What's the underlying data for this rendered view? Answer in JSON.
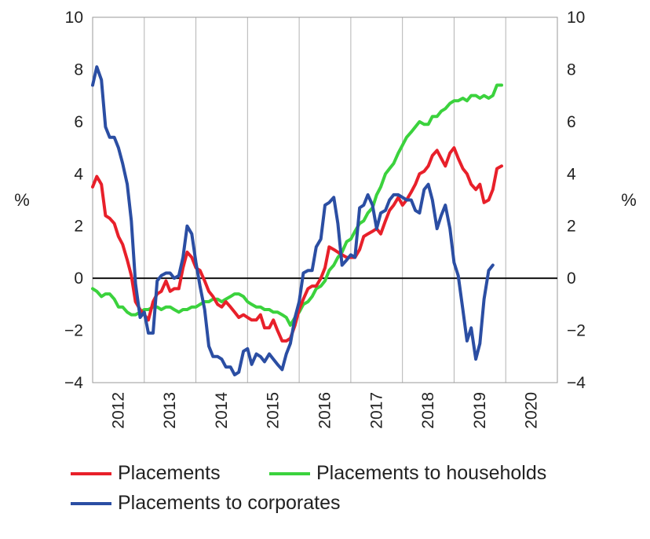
{
  "chart_data": {
    "type": "line",
    "title": "",
    "xlabel": "",
    "ylabel_left": "%",
    "ylabel_right": "%",
    "ylim": [
      -4,
      10
    ],
    "y_ticks": [
      -4,
      -2,
      0,
      2,
      4,
      6,
      8,
      10
    ],
    "x_ticks": [
      "2012",
      "2013",
      "2014",
      "2015",
      "2016",
      "2017",
      "2018",
      "2019",
      "2020"
    ],
    "x_range": [
      2011.0,
      2020.0
    ],
    "grid": "vertical",
    "legend_position": "bottom",
    "series": [
      {
        "name": "Placements",
        "color": "#e8202a",
        "points": [
          [
            2011.0,
            3.5
          ],
          [
            2011.08,
            3.9
          ],
          [
            2011.17,
            3.6
          ],
          [
            2011.25,
            2.4
          ],
          [
            2011.33,
            2.3
          ],
          [
            2011.42,
            2.1
          ],
          [
            2011.5,
            1.6
          ],
          [
            2011.58,
            1.3
          ],
          [
            2011.67,
            0.7
          ],
          [
            2011.75,
            0.1
          ],
          [
            2011.83,
            -0.9
          ],
          [
            2011.92,
            -1.2
          ],
          [
            2012.0,
            -1.4
          ],
          [
            2012.08,
            -1.6
          ],
          [
            2012.17,
            -0.9
          ],
          [
            2012.25,
            -0.6
          ],
          [
            2012.33,
            -0.5
          ],
          [
            2012.42,
            -0.1
          ],
          [
            2012.5,
            -0.5
          ],
          [
            2012.58,
            -0.4
          ],
          [
            2012.67,
            -0.4
          ],
          [
            2012.75,
            0.4
          ],
          [
            2012.83,
            1.0
          ],
          [
            2012.92,
            0.8
          ],
          [
            2013.0,
            0.4
          ],
          [
            2013.08,
            0.3
          ],
          [
            2013.17,
            -0.1
          ],
          [
            2013.25,
            -0.5
          ],
          [
            2013.33,
            -0.7
          ],
          [
            2013.42,
            -1.0
          ],
          [
            2013.5,
            -1.1
          ],
          [
            2013.58,
            -0.9
          ],
          [
            2013.67,
            -1.1
          ],
          [
            2013.75,
            -1.3
          ],
          [
            2013.83,
            -1.5
          ],
          [
            2013.92,
            -1.4
          ],
          [
            2014.0,
            -1.5
          ],
          [
            2014.08,
            -1.6
          ],
          [
            2014.17,
            -1.6
          ],
          [
            2014.25,
            -1.4
          ],
          [
            2014.33,
            -1.9
          ],
          [
            2014.42,
            -1.9
          ],
          [
            2014.5,
            -1.6
          ],
          [
            2014.58,
            -2.0
          ],
          [
            2014.67,
            -2.4
          ],
          [
            2014.75,
            -2.4
          ],
          [
            2014.83,
            -2.3
          ],
          [
            2014.92,
            -1.8
          ],
          [
            2015.0,
            -1.2
          ],
          [
            2015.08,
            -0.8
          ],
          [
            2015.17,
            -0.4
          ],
          [
            2015.25,
            -0.3
          ],
          [
            2015.33,
            -0.3
          ],
          [
            2015.42,
            0.0
          ],
          [
            2015.5,
            0.4
          ],
          [
            2015.58,
            1.2
          ],
          [
            2015.67,
            1.1
          ],
          [
            2015.75,
            1.0
          ],
          [
            2015.83,
            0.9
          ],
          [
            2015.92,
            0.8
          ],
          [
            2016.0,
            0.8
          ],
          [
            2016.08,
            0.8
          ],
          [
            2016.17,
            1.1
          ],
          [
            2016.25,
            1.6
          ],
          [
            2016.33,
            1.7
          ],
          [
            2016.42,
            1.8
          ],
          [
            2016.5,
            1.9
          ],
          [
            2016.58,
            1.7
          ],
          [
            2016.67,
            2.2
          ],
          [
            2016.75,
            2.6
          ],
          [
            2016.83,
            2.8
          ],
          [
            2016.92,
            3.1
          ],
          [
            2017.0,
            2.8
          ],
          [
            2017.08,
            3.0
          ],
          [
            2017.17,
            3.3
          ],
          [
            2017.25,
            3.6
          ],
          [
            2017.33,
            4.0
          ],
          [
            2017.42,
            4.1
          ],
          [
            2017.5,
            4.3
          ],
          [
            2017.58,
            4.7
          ],
          [
            2017.67,
            4.9
          ],
          [
            2017.75,
            4.6
          ],
          [
            2017.83,
            4.3
          ],
          [
            2017.92,
            4.8
          ],
          [
            2018.0,
            5.0
          ],
          [
            2018.08,
            4.6
          ],
          [
            2018.17,
            4.2
          ],
          [
            2018.25,
            4.0
          ],
          [
            2018.33,
            3.6
          ],
          [
            2018.42,
            3.4
          ],
          [
            2018.5,
            3.6
          ],
          [
            2018.58,
            2.9
          ],
          [
            2018.67,
            3.0
          ],
          [
            2018.75,
            3.4
          ],
          [
            2018.83,
            4.2
          ],
          [
            2018.92,
            4.3
          ]
        ]
      },
      {
        "name": "Placements to households",
        "color": "#3bd23d",
        "points": [
          [
            2011.0,
            -0.4
          ],
          [
            2011.08,
            -0.5
          ],
          [
            2011.17,
            -0.7
          ],
          [
            2011.25,
            -0.6
          ],
          [
            2011.33,
            -0.6
          ],
          [
            2011.42,
            -0.8
          ],
          [
            2011.5,
            -1.1
          ],
          [
            2011.58,
            -1.1
          ],
          [
            2011.67,
            -1.3
          ],
          [
            2011.75,
            -1.4
          ],
          [
            2011.83,
            -1.4
          ],
          [
            2011.92,
            -1.3
          ],
          [
            2012.0,
            -1.2
          ],
          [
            2012.08,
            -1.2
          ],
          [
            2012.17,
            -1.1
          ],
          [
            2012.25,
            -1.1
          ],
          [
            2012.33,
            -1.2
          ],
          [
            2012.42,
            -1.1
          ],
          [
            2012.5,
            -1.1
          ],
          [
            2012.58,
            -1.2
          ],
          [
            2012.67,
            -1.3
          ],
          [
            2012.75,
            -1.2
          ],
          [
            2012.83,
            -1.2
          ],
          [
            2012.92,
            -1.1
          ],
          [
            2013.0,
            -1.1
          ],
          [
            2013.08,
            -1.0
          ],
          [
            2013.17,
            -0.9
          ],
          [
            2013.25,
            -0.9
          ],
          [
            2013.33,
            -0.8
          ],
          [
            2013.42,
            -0.8
          ],
          [
            2013.5,
            -0.9
          ],
          [
            2013.58,
            -0.8
          ],
          [
            2013.67,
            -0.7
          ],
          [
            2013.75,
            -0.6
          ],
          [
            2013.83,
            -0.6
          ],
          [
            2013.92,
            -0.7
          ],
          [
            2014.0,
            -0.9
          ],
          [
            2014.08,
            -1.0
          ],
          [
            2014.17,
            -1.1
          ],
          [
            2014.25,
            -1.1
          ],
          [
            2014.33,
            -1.2
          ],
          [
            2014.42,
            -1.2
          ],
          [
            2014.5,
            -1.3
          ],
          [
            2014.58,
            -1.3
          ],
          [
            2014.67,
            -1.4
          ],
          [
            2014.75,
            -1.5
          ],
          [
            2014.83,
            -1.8
          ],
          [
            2014.92,
            -1.5
          ],
          [
            2015.0,
            -1.3
          ],
          [
            2015.08,
            -1.0
          ],
          [
            2015.17,
            -0.9
          ],
          [
            2015.25,
            -0.7
          ],
          [
            2015.33,
            -0.4
          ],
          [
            2015.42,
            -0.3
          ],
          [
            2015.5,
            -0.1
          ],
          [
            2015.58,
            0.3
          ],
          [
            2015.67,
            0.5
          ],
          [
            2015.75,
            0.8
          ],
          [
            2015.83,
            1.0
          ],
          [
            2015.92,
            1.4
          ],
          [
            2016.0,
            1.5
          ],
          [
            2016.08,
            1.8
          ],
          [
            2016.17,
            2.1
          ],
          [
            2016.25,
            2.2
          ],
          [
            2016.33,
            2.5
          ],
          [
            2016.42,
            2.7
          ],
          [
            2016.5,
            3.2
          ],
          [
            2016.58,
            3.5
          ],
          [
            2016.67,
            4.0
          ],
          [
            2016.75,
            4.2
          ],
          [
            2016.83,
            4.4
          ],
          [
            2016.92,
            4.8
          ],
          [
            2017.0,
            5.1
          ],
          [
            2017.08,
            5.4
          ],
          [
            2017.17,
            5.6
          ],
          [
            2017.25,
            5.8
          ],
          [
            2017.33,
            6.0
          ],
          [
            2017.42,
            5.9
          ],
          [
            2017.5,
            5.9
          ],
          [
            2017.58,
            6.2
          ],
          [
            2017.67,
            6.2
          ],
          [
            2017.75,
            6.4
          ],
          [
            2017.83,
            6.5
          ],
          [
            2017.92,
            6.7
          ],
          [
            2018.0,
            6.8
          ],
          [
            2018.08,
            6.8
          ],
          [
            2018.17,
            6.9
          ],
          [
            2018.25,
            6.8
          ],
          [
            2018.33,
            7.0
          ],
          [
            2018.42,
            7.0
          ],
          [
            2018.5,
            6.9
          ],
          [
            2018.58,
            7.0
          ],
          [
            2018.67,
            6.9
          ],
          [
            2018.75,
            7.0
          ],
          [
            2018.83,
            7.4
          ],
          [
            2018.92,
            7.4
          ]
        ]
      },
      {
        "name": "Placements to corporates",
        "color": "#2b4ea3",
        "points": [
          [
            2011.0,
            7.4
          ],
          [
            2011.08,
            8.1
          ],
          [
            2011.17,
            7.6
          ],
          [
            2011.25,
            5.8
          ],
          [
            2011.33,
            5.4
          ],
          [
            2011.42,
            5.4
          ],
          [
            2011.5,
            5.0
          ],
          [
            2011.58,
            4.4
          ],
          [
            2011.67,
            3.6
          ],
          [
            2011.75,
            2.2
          ],
          [
            2011.83,
            -0.2
          ],
          [
            2011.92,
            -1.5
          ],
          [
            2012.0,
            -1.3
          ],
          [
            2012.08,
            -2.1
          ],
          [
            2012.17,
            -2.1
          ],
          [
            2012.25,
            -0.1
          ],
          [
            2012.33,
            0.1
          ],
          [
            2012.42,
            0.2
          ],
          [
            2012.5,
            0.2
          ],
          [
            2012.58,
            0.0
          ],
          [
            2012.67,
            0.1
          ],
          [
            2012.75,
            0.8
          ],
          [
            2012.83,
            2.0
          ],
          [
            2012.92,
            1.7
          ],
          [
            2013.0,
            0.6
          ],
          [
            2013.08,
            -0.3
          ],
          [
            2013.17,
            -1.2
          ],
          [
            2013.25,
            -2.6
          ],
          [
            2013.33,
            -3.0
          ],
          [
            2013.42,
            -3.0
          ],
          [
            2013.5,
            -3.1
          ],
          [
            2013.58,
            -3.4
          ],
          [
            2013.67,
            -3.4
          ],
          [
            2013.75,
            -3.7
          ],
          [
            2013.83,
            -3.6
          ],
          [
            2013.92,
            -2.8
          ],
          [
            2014.0,
            -2.7
          ],
          [
            2014.08,
            -3.3
          ],
          [
            2014.17,
            -2.9
          ],
          [
            2014.25,
            -3.0
          ],
          [
            2014.33,
            -3.2
          ],
          [
            2014.42,
            -2.9
          ],
          [
            2014.5,
            -3.1
          ],
          [
            2014.58,
            -3.3
          ],
          [
            2014.67,
            -3.5
          ],
          [
            2014.75,
            -2.9
          ],
          [
            2014.83,
            -2.5
          ],
          [
            2014.92,
            -1.5
          ],
          [
            2015.0,
            -0.9
          ],
          [
            2015.08,
            0.2
          ],
          [
            2015.17,
            0.3
          ],
          [
            2015.25,
            0.3
          ],
          [
            2015.33,
            1.2
          ],
          [
            2015.42,
            1.5
          ],
          [
            2015.5,
            2.8
          ],
          [
            2015.58,
            2.9
          ],
          [
            2015.67,
            3.1
          ],
          [
            2015.75,
            2.1
          ],
          [
            2015.83,
            0.5
          ],
          [
            2015.92,
            0.7
          ],
          [
            2016.0,
            0.9
          ],
          [
            2016.08,
            0.8
          ],
          [
            2016.17,
            2.7
          ],
          [
            2016.25,
            2.8
          ],
          [
            2016.33,
            3.2
          ],
          [
            2016.42,
            2.8
          ],
          [
            2016.5,
            1.9
          ],
          [
            2016.58,
            2.5
          ],
          [
            2016.67,
            2.6
          ],
          [
            2016.75,
            3.0
          ],
          [
            2016.83,
            3.2
          ],
          [
            2016.92,
            3.2
          ],
          [
            2017.0,
            3.1
          ],
          [
            2017.08,
            3.0
          ],
          [
            2017.17,
            3.0
          ],
          [
            2017.25,
            2.6
          ],
          [
            2017.33,
            2.5
          ],
          [
            2017.42,
            3.4
          ],
          [
            2017.5,
            3.6
          ],
          [
            2017.58,
            3.0
          ],
          [
            2017.67,
            1.9
          ],
          [
            2017.75,
            2.4
          ],
          [
            2017.83,
            2.8
          ],
          [
            2017.92,
            1.9
          ],
          [
            2018.0,
            0.6
          ],
          [
            2018.08,
            0.1
          ],
          [
            2018.17,
            -1.2
          ],
          [
            2018.25,
            -2.4
          ],
          [
            2018.33,
            -1.9
          ],
          [
            2018.42,
            -3.1
          ],
          [
            2018.5,
            -2.5
          ],
          [
            2018.58,
            -0.8
          ],
          [
            2018.67,
            0.3
          ],
          [
            2018.75,
            0.5
          ]
        ]
      }
    ]
  }
}
